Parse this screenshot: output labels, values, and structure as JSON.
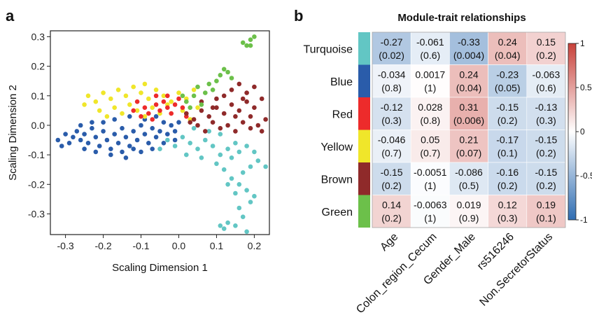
{
  "chart_data": [
    {
      "panel": "a",
      "type": "scatter",
      "title": "",
      "xlabel": "Scaling Dimension 1",
      "ylabel": "Scaling Dimension 2",
      "xlim": [
        -0.34,
        0.24
      ],
      "ylim": [
        -0.37,
        0.32
      ],
      "xticks": [
        -0.3,
        -0.2,
        -0.1,
        0.0,
        0.1,
        0.2
      ],
      "xtick_labels": [
        "-0.3",
        "-0.2",
        "-0.1",
        "0.0",
        "0.1",
        "0.2"
      ],
      "yticks": [
        -0.3,
        -0.2,
        -0.1,
        0.0,
        0.1,
        0.2,
        0.3
      ],
      "ytick_labels": [
        "-0.3",
        "-0.2",
        "-0.1",
        "0.0",
        "0.1",
        "0.2",
        "0.3"
      ],
      "series": [
        {
          "color": "#2a5caa",
          "points": [
            [
              -0.32,
              -0.05
            ],
            [
              -0.31,
              -0.07
            ],
            [
              -0.3,
              -0.03
            ],
            [
              -0.29,
              -0.06
            ],
            [
              -0.28,
              -0.04
            ],
            [
              -0.27,
              -0.02
            ],
            [
              -0.26,
              -0.05
            ],
            [
              -0.25,
              -0.03
            ],
            [
              -0.24,
              -0.06
            ],
            [
              -0.23,
              -0.01
            ],
            [
              -0.22,
              -0.04
            ],
            [
              -0.21,
              -0.07
            ],
            [
              -0.2,
              -0.02
            ],
            [
              -0.19,
              -0.05
            ],
            [
              -0.18,
              -0.08
            ],
            [
              -0.17,
              -0.03
            ],
            [
              -0.16,
              -0.06
            ],
            [
              -0.15,
              -0.01
            ],
            [
              -0.14,
              -0.04
            ],
            [
              -0.13,
              -0.07
            ],
            [
              -0.12,
              -0.02
            ],
            [
              -0.11,
              -0.05
            ],
            [
              -0.1,
              0.0
            ],
            [
              -0.09,
              -0.03
            ],
            [
              -0.08,
              -0.06
            ],
            [
              -0.07,
              -0.01
            ],
            [
              -0.06,
              -0.04
            ],
            [
              -0.05,
              -0.02
            ],
            [
              -0.04,
              0.01
            ],
            [
              -0.03,
              -0.03
            ],
            [
              -0.02,
              0.0
            ],
            [
              -0.01,
              -0.02
            ],
            [
              0.0,
              0.01
            ],
            [
              -0.25,
              -0.08
            ],
            [
              -0.22,
              -0.09
            ],
            [
              -0.18,
              -0.1
            ],
            [
              -0.15,
              -0.09
            ],
            [
              -0.12,
              -0.08
            ],
            [
              -0.2,
              0.01
            ],
            [
              -0.17,
              0.02
            ],
            [
              -0.13,
              0.03
            ],
            [
              -0.09,
              0.02
            ],
            [
              -0.06,
              0.03
            ],
            [
              -0.26,
              0.0
            ],
            [
              -0.23,
              0.01
            ],
            [
              -0.14,
              -0.11
            ],
            [
              -0.1,
              -0.09
            ],
            [
              -0.07,
              -0.08
            ],
            [
              -0.04,
              -0.06
            ],
            [
              -0.01,
              -0.05
            ]
          ]
        },
        {
          "color": "#62c6c4",
          "points": [
            [
              0.18,
              -0.36
            ],
            [
              0.15,
              -0.34
            ],
            [
              0.13,
              -0.33
            ],
            [
              0.12,
              -0.35
            ],
            [
              0.11,
              -0.34
            ],
            [
              0.17,
              -0.31
            ],
            [
              0.16,
              -0.28
            ],
            [
              0.19,
              -0.26
            ],
            [
              0.2,
              -0.24
            ],
            [
              0.18,
              -0.22
            ],
            [
              0.16,
              -0.2
            ],
            [
              0.14,
              -0.18
            ],
            [
              0.17,
              -0.16
            ],
            [
              0.19,
              -0.14
            ],
            [
              0.21,
              -0.12
            ],
            [
              0.23,
              -0.14
            ],
            [
              0.2,
              -0.09
            ],
            [
              0.18,
              -0.07
            ],
            [
              0.15,
              -0.06
            ],
            [
              0.13,
              -0.08
            ],
            [
              0.11,
              -0.1
            ],
            [
              0.09,
              -0.07
            ],
            [
              0.07,
              -0.05
            ],
            [
              0.05,
              -0.08
            ],
            [
              0.03,
              -0.06
            ],
            [
              0.01,
              -0.04
            ],
            [
              -0.01,
              -0.07
            ],
            [
              -0.03,
              -0.05
            ],
            [
              -0.05,
              -0.08
            ],
            [
              0.02,
              -0.1
            ],
            [
              0.06,
              -0.11
            ],
            [
              0.1,
              -0.13
            ],
            [
              0.12,
              -0.15
            ],
            [
              0.14,
              -0.11
            ],
            [
              0.16,
              -0.09
            ],
            [
              0.08,
              -0.02
            ],
            [
              0.11,
              -0.03
            ],
            [
              0.04,
              -0.01
            ],
            [
              0.13,
              -0.2
            ],
            [
              0.15,
              -0.23
            ]
          ]
        },
        {
          "color": "#f0e62a",
          "points": [
            [
              -0.24,
              0.1
            ],
            [
              -0.22,
              0.08
            ],
            [
              -0.2,
              0.11
            ],
            [
              -0.18,
              0.09
            ],
            [
              -0.16,
              0.12
            ],
            [
              -0.14,
              0.1
            ],
            [
              -0.12,
              0.13
            ],
            [
              -0.1,
              0.11
            ],
            [
              -0.08,
              0.09
            ],
            [
              -0.06,
              0.12
            ],
            [
              -0.04,
              0.1
            ],
            [
              -0.02,
              0.08
            ],
            [
              0.0,
              0.11
            ],
            [
              0.02,
              0.09
            ],
            [
              0.04,
              0.12
            ],
            [
              -0.21,
              0.05
            ],
            [
              -0.19,
              0.03
            ],
            [
              -0.17,
              0.06
            ],
            [
              -0.15,
              0.04
            ],
            [
              -0.13,
              0.07
            ],
            [
              -0.11,
              0.05
            ],
            [
              -0.09,
              0.03
            ],
            [
              -0.07,
              0.06
            ],
            [
              -0.05,
              0.04
            ],
            [
              -0.03,
              0.07
            ],
            [
              0.01,
              0.05
            ],
            [
              0.03,
              0.02
            ],
            [
              -0.25,
              0.07
            ],
            [
              -0.09,
              0.14
            ],
            [
              0.05,
              0.06
            ]
          ]
        },
        {
          "color": "#ed2b2b",
          "points": [
            [
              -0.11,
              0.08
            ],
            [
              -0.09,
              0.06
            ],
            [
              -0.08,
              0.04
            ],
            [
              -0.06,
              0.07
            ],
            [
              -0.05,
              0.05
            ],
            [
              -0.04,
              0.08
            ],
            [
              -0.03,
              0.06
            ],
            [
              -0.02,
              0.04
            ],
            [
              -0.01,
              0.07
            ],
            [
              0.0,
              0.09
            ],
            [
              0.01,
              0.06
            ],
            [
              -0.07,
              0.02
            ],
            [
              -0.1,
              0.03
            ],
            [
              -0.12,
              0.05
            ],
            [
              0.02,
              0.03
            ],
            [
              -0.03,
              0.1
            ],
            [
              -0.06,
              0.1
            ]
          ]
        },
        {
          "color": "#8f2a2a",
          "points": [
            [
              0.02,
              0.04
            ],
            [
              0.04,
              0.02
            ],
            [
              0.06,
              0.05
            ],
            [
              0.08,
              0.03
            ],
            [
              0.1,
              0.06
            ],
            [
              0.12,
              0.04
            ],
            [
              0.14,
              0.07
            ],
            [
              0.16,
              0.05
            ],
            [
              0.18,
              0.08
            ],
            [
              0.2,
              0.06
            ],
            [
              0.22,
              0.09
            ],
            [
              0.23,
              0.02
            ],
            [
              0.21,
              0.0
            ],
            [
              0.19,
              -0.01
            ],
            [
              0.17,
              0.01
            ],
            [
              0.15,
              -0.02
            ],
            [
              0.13,
              0.0
            ],
            [
              0.11,
              -0.01
            ],
            [
              0.09,
              0.01
            ],
            [
              0.07,
              -0.02
            ],
            [
              0.05,
              0.0
            ],
            [
              0.03,
              0.01
            ],
            [
              0.12,
              0.1
            ],
            [
              0.14,
              0.12
            ],
            [
              0.16,
              0.14
            ],
            [
              0.18,
              0.11
            ],
            [
              0.2,
              0.13
            ],
            [
              0.17,
              0.09
            ],
            [
              0.1,
              0.09
            ],
            [
              0.06,
              0.08
            ],
            [
              0.22,
              -0.02
            ],
            [
              0.15,
              0.03
            ],
            [
              0.09,
              0.06
            ],
            [
              0.19,
              0.03
            ]
          ]
        },
        {
          "color": "#6cc04a",
          "points": [
            [
              0.02,
              0.08
            ],
            [
              0.04,
              0.1
            ],
            [
              0.05,
              0.13
            ],
            [
              0.07,
              0.11
            ],
            [
              0.08,
              0.14
            ],
            [
              0.09,
              0.12
            ],
            [
              0.1,
              0.15
            ],
            [
              0.11,
              0.17
            ],
            [
              0.12,
              0.19
            ],
            [
              0.13,
              0.18
            ],
            [
              0.14,
              0.16
            ],
            [
              0.06,
              0.07
            ],
            [
              0.03,
              0.06
            ],
            [
              0.01,
              0.1
            ],
            [
              0.18,
              0.27
            ],
            [
              0.19,
              0.29
            ],
            [
              0.2,
              0.3
            ],
            [
              0.17,
              0.28
            ],
            [
              0.19,
              0.27
            ]
          ]
        }
      ]
    },
    {
      "panel": "b",
      "type": "heatmap",
      "title": "Module-trait relationships",
      "rows": [
        {
          "name": "Turquoise",
          "color": "#62c6c4"
        },
        {
          "name": "Blue",
          "color": "#2a5caa"
        },
        {
          "name": "Red",
          "color": "#ed2b2b"
        },
        {
          "name": "Yellow",
          "color": "#f0e62a"
        },
        {
          "name": "Brown",
          "color": "#8f2a2a"
        },
        {
          "name": "Green",
          "color": "#6cc04a"
        }
      ],
      "columns": [
        "Age",
        "Colon_region_Cecum",
        "Gender_Male",
        "rs516246",
        "Non.SecretorStatus"
      ],
      "values": [
        [
          -0.27,
          -0.061,
          -0.33,
          0.24,
          0.15
        ],
        [
          -0.034,
          0.0017,
          0.24,
          -0.23,
          -0.063
        ],
        [
          -0.12,
          0.028,
          0.31,
          -0.15,
          -0.13
        ],
        [
          -0.046,
          0.05,
          0.21,
          -0.17,
          -0.15
        ],
        [
          -0.15,
          -0.0051,
          -0.086,
          -0.16,
          -0.15
        ],
        [
          0.14,
          -0.0063,
          0.019,
          0.12,
          0.19
        ]
      ],
      "value_labels": [
        [
          "-0.27",
          "-0.061",
          "-0.33",
          "0.24",
          "0.15"
        ],
        [
          "-0.034",
          "0.0017",
          "0.24",
          "-0.23",
          "-0.063"
        ],
        [
          "-0.12",
          "0.028",
          "0.31",
          "-0.15",
          "-0.13"
        ],
        [
          "-0.046",
          "0.05",
          "0.21",
          "-0.17",
          "-0.15"
        ],
        [
          "-0.15",
          "-0.0051",
          "-0.086",
          "-0.16",
          "-0.15"
        ],
        [
          "0.14",
          "-0.0063",
          "0.019",
          "0.12",
          "0.19"
        ]
      ],
      "pvalue_labels": [
        [
          "(0.02)",
          "(0.6)",
          "(0.004)",
          "(0.04)",
          "(0.2)"
        ],
        [
          "(0.8)",
          "(1)",
          "(0.04)",
          "(0.05)",
          "(0.6)"
        ],
        [
          "(0.3)",
          "(0.8)",
          "(0.006)",
          "(0.2)",
          "(0.3)"
        ],
        [
          "(0.7)",
          "(0.7)",
          "(0.07)",
          "(0.1)",
          "(0.2)"
        ],
        [
          "(0.2)",
          "(1)",
          "(0.5)",
          "(0.2)",
          "(0.2)"
        ],
        [
          "(0.2)",
          "(1)",
          "(0.9)",
          "(0.3)",
          "(0.1)"
        ]
      ],
      "colorbar": {
        "range": [
          -1,
          1
        ],
        "ticks": [
          1,
          0.5,
          0,
          -0.5,
          -1
        ],
        "tick_labels": [
          "1",
          "0.5",
          "0",
          "-0.5",
          "-1"
        ],
        "low_color": "#2f6db2",
        "mid_color": "#ffffff",
        "high_color": "#c8413a"
      }
    }
  ],
  "panel_labels": {
    "a": "a",
    "b": "b"
  }
}
